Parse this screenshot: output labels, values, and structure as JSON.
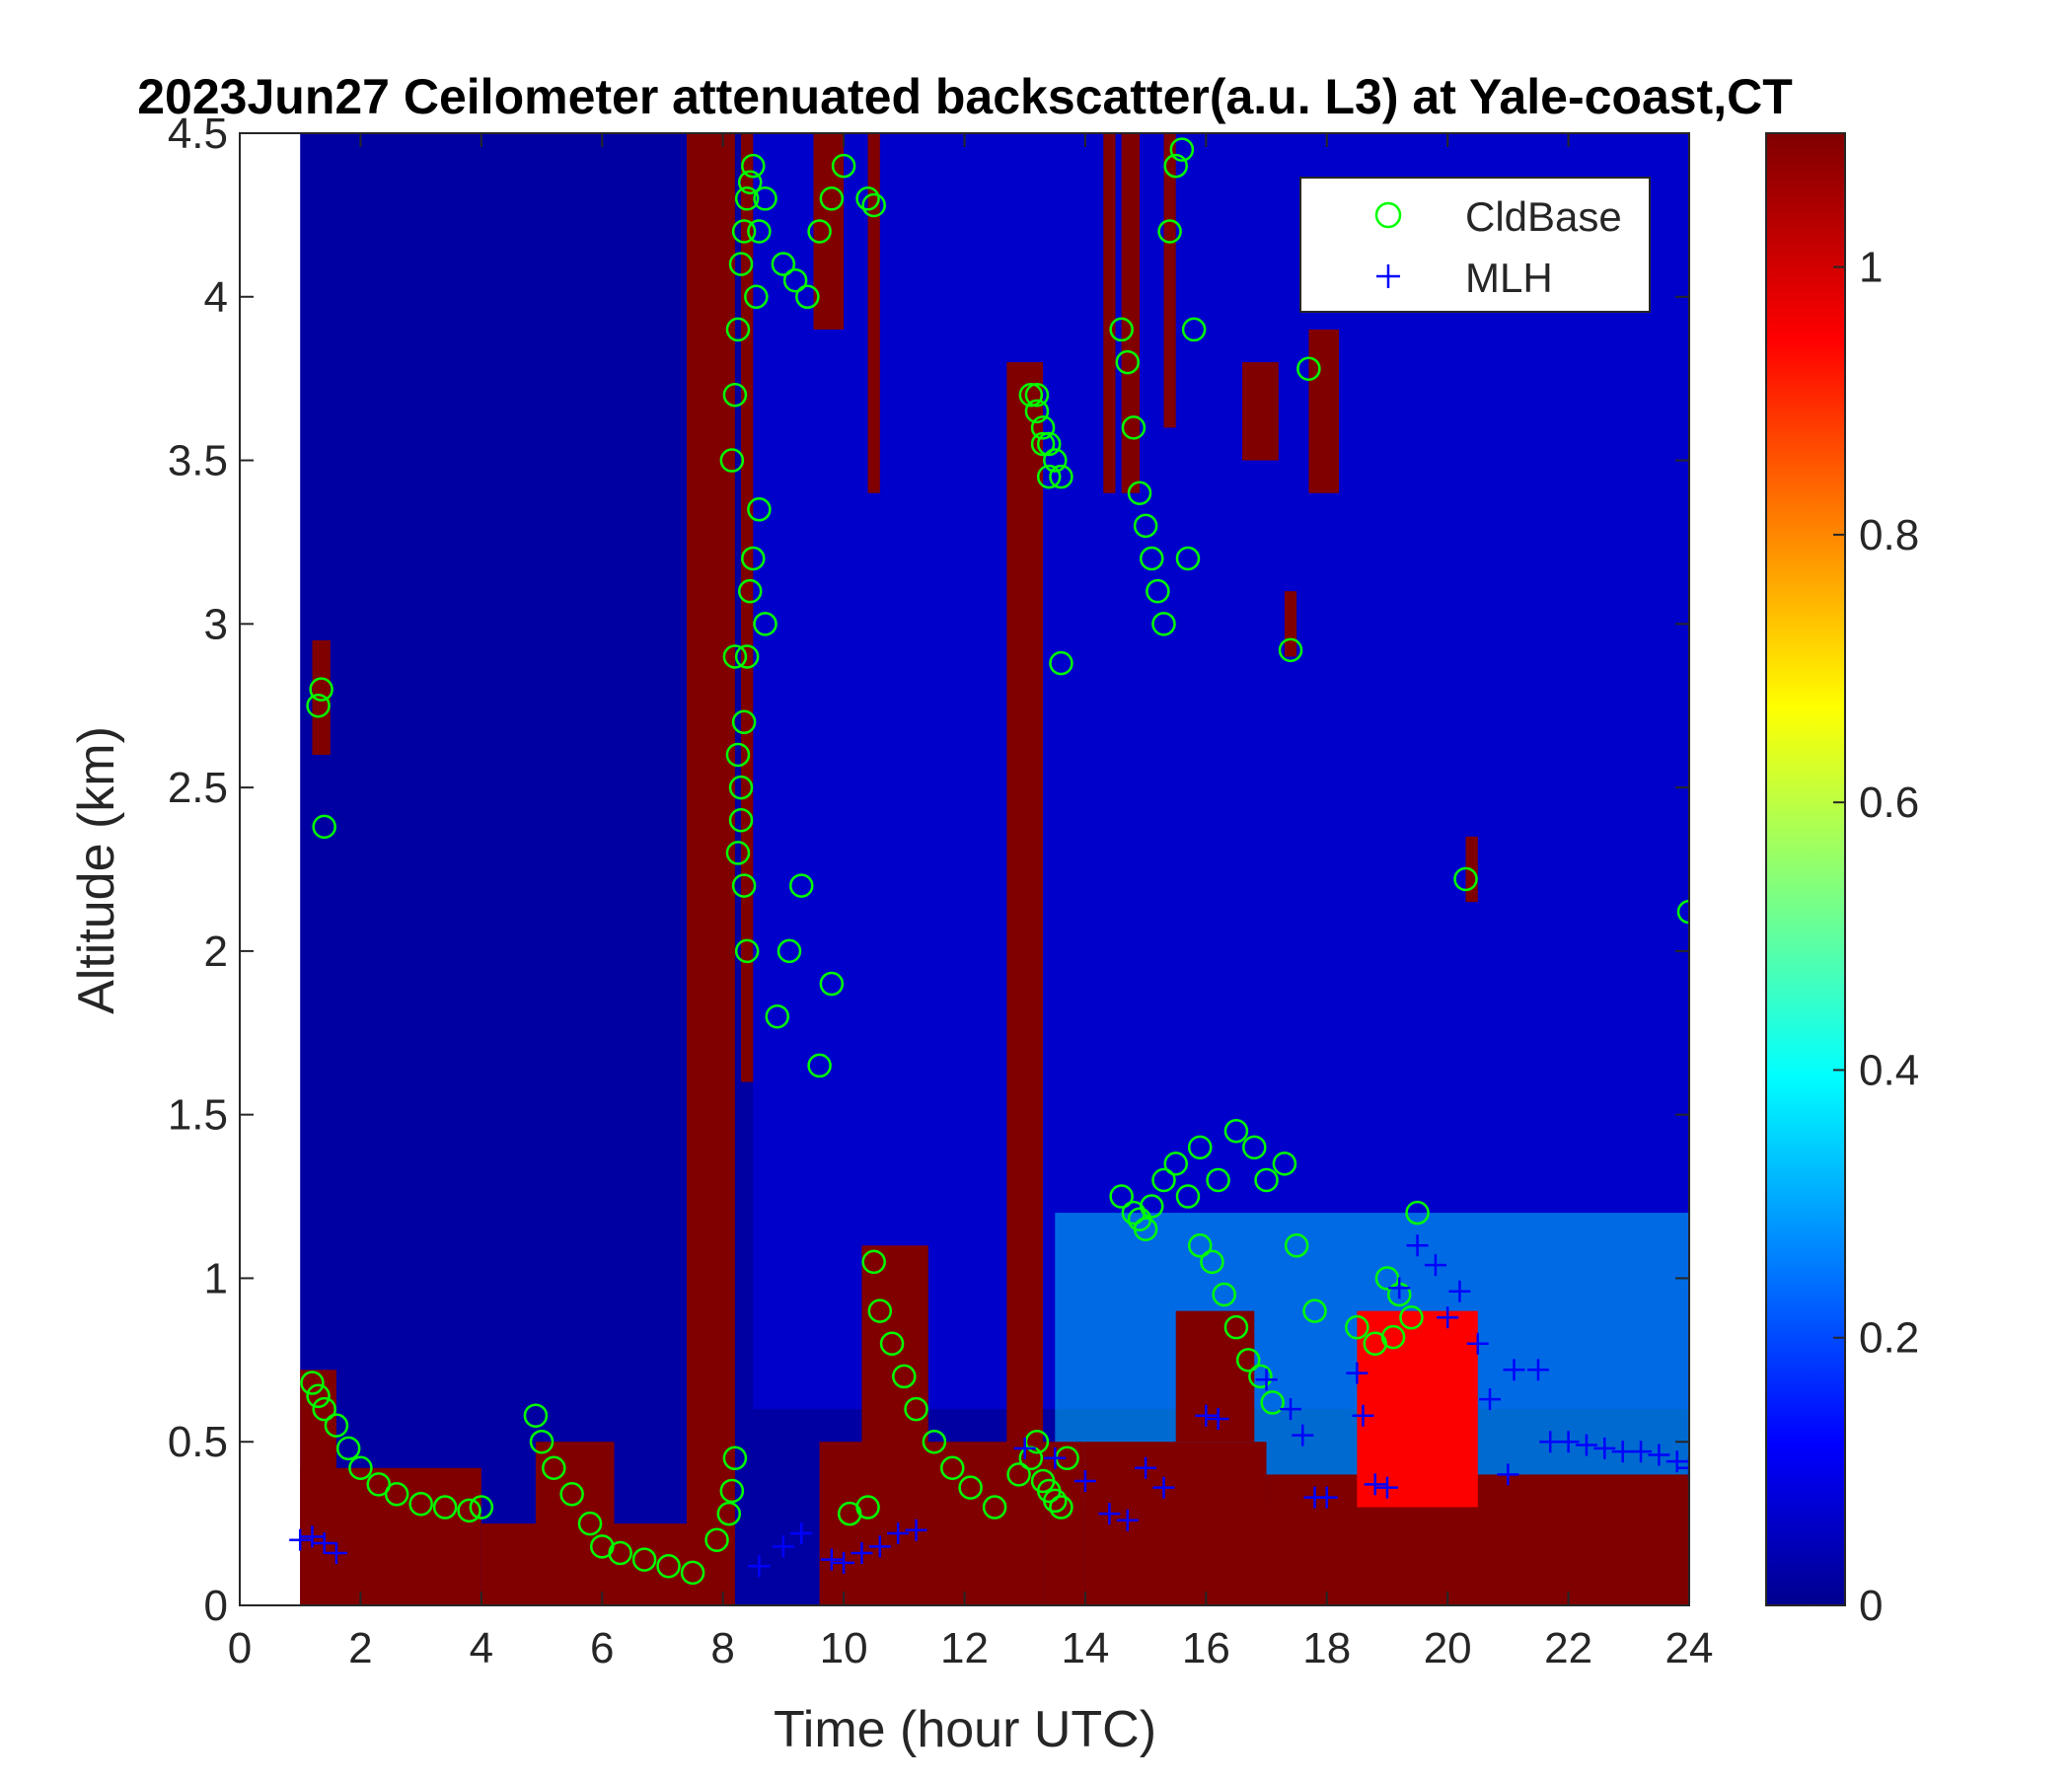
{
  "chart_data": {
    "type": "heatmap",
    "title": "2023Jun27 Ceilometer attenuated backscatter(a.u. L3) at Yale-coast,CT",
    "xlabel": "Time (hour UTC)",
    "ylabel": "Altitude (km)",
    "xlim": [
      0,
      24
    ],
    "ylim": [
      0,
      4.5
    ],
    "xticks": [
      0,
      2,
      4,
      6,
      8,
      10,
      12,
      14,
      16,
      18,
      20,
      22,
      24
    ],
    "yticks": [
      0,
      0.5,
      1,
      1.5,
      2,
      2.5,
      3,
      3.5,
      4,
      4.5
    ],
    "yticklabels": [
      "0",
      "0.5",
      "1",
      "1.5",
      "2",
      "2.5",
      "3",
      "3.5",
      "4",
      "4.5"
    ],
    "colorbar": {
      "colormap": "jet",
      "clim": [
        0,
        1.1
      ],
      "ticks": [
        0,
        0.2,
        0.4,
        0.6,
        0.8,
        1
      ]
    },
    "grid": false,
    "legend": {
      "position": "top-right",
      "entries": [
        {
          "label": "CldBase",
          "marker": "circle",
          "color": "#00ff00"
        },
        {
          "label": "MLH",
          "marker": "plus",
          "color": "#0000ff"
        }
      ]
    },
    "data_start_hour": 1.0,
    "backscatter_features": [
      {
        "x0": 1.0,
        "x1": 4.0,
        "y0": 0,
        "y1": 0.42,
        "value": 1.1
      },
      {
        "x0": 1.0,
        "x1": 1.6,
        "y0": 0,
        "y1": 0.72,
        "value": 1.1
      },
      {
        "x0": 4.0,
        "x1": 7.6,
        "y0": 0,
        "y1": 0.25,
        "value": 1.1
      },
      {
        "x0": 4.9,
        "x1": 6.2,
        "y0": 0.2,
        "y1": 0.5,
        "value": 1.1
      },
      {
        "x0": 7.4,
        "x1": 8.2,
        "y0": 0,
        "y1": 4.5,
        "value": 1.1
      },
      {
        "x0": 8.3,
        "x1": 8.5,
        "y0": 1.6,
        "y1": 4.5,
        "value": 1.1
      },
      {
        "x0": 9.5,
        "x1": 10.0,
        "y0": 3.9,
        "y1": 4.5,
        "value": 1.1
      },
      {
        "x0": 10.4,
        "x1": 10.6,
        "y0": 3.4,
        "y1": 4.5,
        "value": 1.1
      },
      {
        "x0": 9.6,
        "x1": 12.8,
        "y0": 0,
        "y1": 0.5,
        "value": 1.1
      },
      {
        "x0": 10.3,
        "x1": 11.4,
        "y0": 0.45,
        "y1": 1.1,
        "value": 1.1
      },
      {
        "x0": 12.7,
        "x1": 13.3,
        "y0": 0,
        "y1": 3.8,
        "value": 1.1
      },
      {
        "x0": 13.3,
        "x1": 14.0,
        "y0": 0,
        "y1": 0.5,
        "value": 1.1
      },
      {
        "x0": 14.3,
        "x1": 14.5,
        "y0": 3.4,
        "y1": 4.5,
        "value": 1.1
      },
      {
        "x0": 14.6,
        "x1": 14.9,
        "y0": 3.4,
        "y1": 4.5,
        "value": 1.1
      },
      {
        "x0": 15.3,
        "x1": 15.5,
        "y0": 3.6,
        "y1": 4.5,
        "value": 1.1
      },
      {
        "x0": 14.0,
        "x1": 17.0,
        "y0": 0,
        "y1": 0.5,
        "value": 1.1
      },
      {
        "x0": 15.5,
        "x1": 16.8,
        "y0": 0.5,
        "y1": 0.9,
        "value": 1.1
      },
      {
        "x0": 16.6,
        "x1": 17.2,
        "y0": 3.5,
        "y1": 3.8,
        "value": 1.1
      },
      {
        "x0": 17.7,
        "x1": 18.2,
        "y0": 3.4,
        "y1": 3.9,
        "value": 1.1
      },
      {
        "x0": 17.0,
        "x1": 24.0,
        "y0": 0,
        "y1": 0.4,
        "value": 1.1
      },
      {
        "x0": 18.5,
        "x1": 20.5,
        "y0": 0.3,
        "y1": 0.9,
        "value": 0.95
      },
      {
        "x0": 20.3,
        "x1": 20.5,
        "y0": 2.15,
        "y1": 2.35,
        "value": 1.1
      },
      {
        "x0": 17.3,
        "x1": 17.5,
        "y0": 2.9,
        "y1": 3.1,
        "value": 1.1
      },
      {
        "x0": 1.2,
        "x1": 1.5,
        "y0": 2.6,
        "y1": 2.95,
        "value": 1.1
      }
    ],
    "series": [
      {
        "name": "CldBase",
        "marker": "circle",
        "color": "#00ff00",
        "x": [
          1.2,
          1.3,
          1.4,
          1.6,
          1.8,
          2.0,
          2.3,
          2.6,
          3.0,
          3.4,
          3.8,
          4.0,
          4.9,
          5.0,
          5.2,
          5.5,
          5.8,
          6.0,
          6.3,
          6.7,
          7.1,
          7.5,
          7.9,
          8.1,
          8.15,
          8.2,
          8.25,
          8.3,
          8.35,
          8.4,
          8.45,
          8.5,
          8.6,
          8.7,
          8.9,
          9.1,
          9.3,
          9.6,
          9.8,
          10.1,
          10.4,
          10.5,
          10.6,
          10.8,
          11.0,
          11.2,
          11.5,
          11.8,
          12.1,
          12.5,
          12.9,
          13.1,
          13.2,
          13.3,
          13.4,
          13.5,
          13.6,
          13.7,
          14.6,
          14.8,
          14.9,
          15.0,
          15.1,
          15.3,
          15.5,
          15.7,
          15.9,
          16.1,
          16.3,
          16.5,
          16.7,
          16.9,
          17.1,
          17.3,
          17.5,
          17.8,
          18.5,
          18.8,
          19.1,
          19.4,
          19.5,
          20.3,
          24.0,
          1.3,
          1.35,
          1.4,
          8.15,
          8.2,
          8.25,
          8.3,
          8.35,
          8.4,
          8.45,
          8.5,
          8.55,
          8.6,
          8.7,
          9.0,
          9.2,
          9.4,
          9.6,
          9.8,
          10.0,
          10.4,
          10.5,
          13.2,
          13.3,
          13.4,
          13.5,
          13.6,
          14.6,
          14.7,
          14.8,
          14.9,
          15.0,
          15.1,
          15.2,
          15.3,
          15.4,
          15.5,
          15.6,
          15.7,
          15.8,
          17.4,
          17.7,
          13.1,
          13.2,
          13.3,
          13.4,
          13.6,
          8.2,
          8.25,
          8.3,
          8.35,
          8.4,
          16.2,
          15.9,
          16.5,
          16.8,
          17.0,
          19.0,
          19.2
        ],
        "y": [
          0.68,
          0.64,
          0.6,
          0.55,
          0.48,
          0.42,
          0.37,
          0.34,
          0.31,
          0.3,
          0.29,
          0.3,
          0.58,
          0.5,
          0.42,
          0.34,
          0.25,
          0.18,
          0.16,
          0.14,
          0.12,
          0.1,
          0.2,
          0.28,
          0.35,
          0.45,
          2.3,
          2.5,
          2.7,
          2.9,
          3.1,
          3.2,
          3.35,
          3.0,
          1.8,
          2.0,
          2.2,
          1.65,
          1.9,
          0.28,
          0.3,
          1.05,
          0.9,
          0.8,
          0.7,
          0.6,
          0.5,
          0.42,
          0.36,
          0.3,
          0.4,
          0.45,
          0.5,
          0.38,
          0.35,
          0.32,
          0.3,
          0.45,
          1.25,
          1.2,
          1.18,
          1.15,
          1.22,
          1.3,
          1.35,
          1.25,
          1.1,
          1.05,
          0.95,
          0.85,
          0.75,
          0.7,
          0.62,
          1.35,
          1.1,
          0.9,
          0.85,
          0.8,
          0.82,
          0.88,
          1.2,
          2.22,
          2.12,
          2.75,
          2.8,
          2.38,
          3.5,
          3.7,
          3.9,
          4.1,
          4.2,
          4.3,
          4.35,
          4.4,
          4.0,
          4.2,
          4.3,
          4.1,
          4.05,
          4.0,
          4.2,
          4.3,
          4.4,
          4.3,
          4.28,
          3.7,
          3.6,
          3.55,
          3.5,
          3.45,
          3.9,
          3.8,
          3.6,
          3.4,
          3.3,
          3.2,
          3.1,
          3.0,
          4.2,
          4.4,
          4.45,
          3.2,
          3.9,
          2.92,
          3.78,
          3.7,
          3.65,
          3.55,
          3.45,
          2.88,
          2.9,
          2.6,
          2.4,
          2.2,
          2.0,
          1.3,
          1.4,
          1.45,
          1.4,
          1.3,
          1.0,
          0.95
        ],
        "note_count": "approx"
      },
      {
        "name": "MLH",
        "marker": "plus",
        "color": "#0000ff",
        "x": [
          1.0,
          1.2,
          1.4,
          1.6,
          8.6,
          9.0,
          9.3,
          9.8,
          10.0,
          10.3,
          10.6,
          10.9,
          11.2,
          13.0,
          13.5,
          14.0,
          14.4,
          14.7,
          15.0,
          15.3,
          16.0,
          16.2,
          17.0,
          17.4,
          17.6,
          17.8,
          18.0,
          18.5,
          18.6,
          18.8,
          19.0,
          19.2,
          19.5,
          19.8,
          20.0,
          20.2,
          20.5,
          20.7,
          21.0,
          21.1,
          21.5,
          21.7,
          22.0,
          22.3,
          22.6,
          22.9,
          23.2,
          23.5,
          23.8,
          24.0
        ],
        "y": [
          0.2,
          0.21,
          0.19,
          0.16,
          0.12,
          0.18,
          0.22,
          0.14,
          0.13,
          0.16,
          0.18,
          0.22,
          0.23,
          0.48,
          0.45,
          0.38,
          0.28,
          0.26,
          0.42,
          0.36,
          0.58,
          0.57,
          0.69,
          0.6,
          0.52,
          0.33,
          0.33,
          0.71,
          0.58,
          0.37,
          0.36,
          0.97,
          1.1,
          1.04,
          0.88,
          0.96,
          0.8,
          0.63,
          0.4,
          0.72,
          0.72,
          0.5,
          0.5,
          0.49,
          0.48,
          0.47,
          0.47,
          0.46,
          0.44,
          0.42
        ]
      }
    ]
  }
}
